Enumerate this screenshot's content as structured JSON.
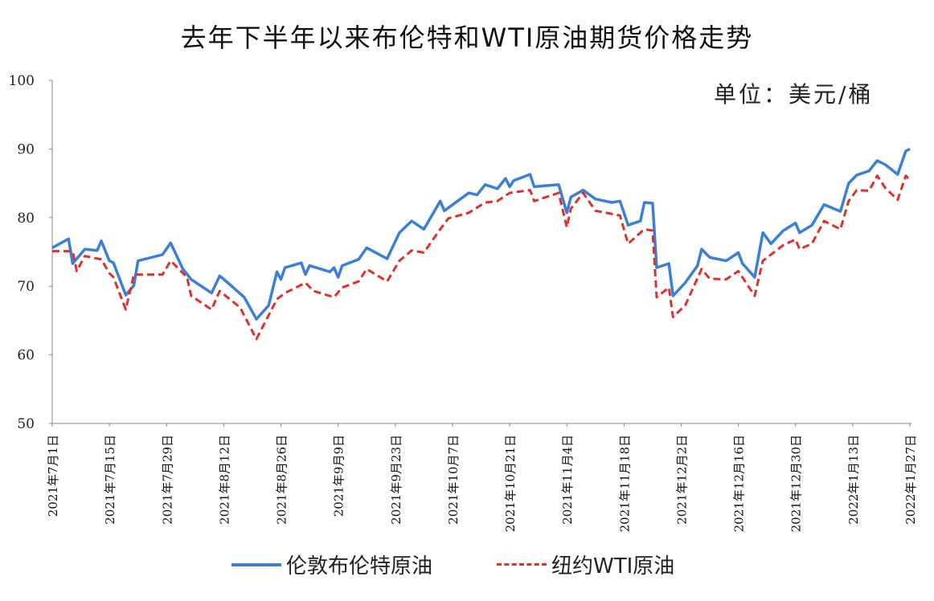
{
  "chart_data": {
    "type": "line",
    "title": "去年下半年以来布伦特和WTI原油期货价格走势",
    "unit_label": "单位：美元/桶",
    "xlabel": "",
    "ylabel": "",
    "ylim": [
      50,
      100
    ],
    "yticks": [
      50,
      60,
      70,
      80,
      90,
      100
    ],
    "xlim": [
      "2021-07-01",
      "2022-01-27"
    ],
    "xtick_dates": [
      "2021-07-01",
      "2021-07-15",
      "2021-07-29",
      "2021-08-12",
      "2021-08-26",
      "2021-09-09",
      "2021-09-23",
      "2021-10-07",
      "2021-10-21",
      "2021-11-04",
      "2021-11-18",
      "2021-12-02",
      "2021-12-16",
      "2021-12-30",
      "2022-01-13",
      "2022-01-27"
    ],
    "xtick_labels": [
      "2021年7月1日",
      "2021年7月15日",
      "2021年7月29日",
      "2021年8月12日",
      "2021年8月26日",
      "2021年9月9日",
      "2021年9月23日",
      "2021年10月7日",
      "2021年10月21日",
      "2021年11月4日",
      "2021年11月18日",
      "2021年12月2日",
      "2021年12月16日",
      "2021年12月30日",
      "2022年1月13日",
      "2022年1月27日"
    ],
    "grid": false,
    "legend_position": "bottom",
    "series": [
      {
        "name": "伦敦布伦特原油",
        "color": "#3b7fd9",
        "style": "solid",
        "x": [
          "2021-07-01",
          "2021-07-05",
          "2021-07-06",
          "2021-07-09",
          "2021-07-12",
          "2021-07-13",
          "2021-07-15",
          "2021-07-16",
          "2021-07-19",
          "2021-07-21",
          "2021-07-22",
          "2021-07-28",
          "2021-07-30",
          "2021-08-02",
          "2021-08-04",
          "2021-08-09",
          "2021-08-11",
          "2021-08-13",
          "2021-08-17",
          "2021-08-20",
          "2021-08-23",
          "2021-08-25",
          "2021-08-26",
          "2021-08-27",
          "2021-08-31",
          "2021-09-01",
          "2021-09-02",
          "2021-09-07",
          "2021-09-08",
          "2021-09-09",
          "2021-09-10",
          "2021-09-14",
          "2021-09-16",
          "2021-09-21",
          "2021-09-24",
          "2021-09-27",
          "2021-09-30",
          "2021-10-04",
          "2021-10-05",
          "2021-10-11",
          "2021-10-13",
          "2021-10-15",
          "2021-10-18",
          "2021-10-20",
          "2021-10-21",
          "2021-10-22",
          "2021-10-26",
          "2021-10-27",
          "2021-11-02",
          "2021-11-04",
          "2021-11-05",
          "2021-11-08",
          "2021-11-11",
          "2021-11-15",
          "2021-11-17",
          "2021-11-18",
          "2021-11-19",
          "2021-11-22",
          "2021-11-23",
          "2021-11-25",
          "2021-11-26",
          "2021-11-29",
          "2021-11-30",
          "2021-12-03",
          "2021-12-06",
          "2021-12-07",
          "2021-12-09",
          "2021-12-13",
          "2021-12-16",
          "2021-12-17",
          "2021-12-20",
          "2021-12-22",
          "2021-12-24",
          "2021-12-27",
          "2021-12-30",
          "2021-12-31",
          "2022-01-03",
          "2022-01-06",
          "2022-01-10",
          "2022-01-12",
          "2022-01-14",
          "2022-01-17",
          "2022-01-19",
          "2022-01-21",
          "2022-01-24",
          "2022-01-26",
          "2022-01-27"
        ],
        "values": [
          75.6,
          76.9,
          73.3,
          75.4,
          75.2,
          76.6,
          73.7,
          73.4,
          68.7,
          70.1,
          73.7,
          74.6,
          76.3,
          72.5,
          71.0,
          69.0,
          71.5,
          70.5,
          68.4,
          65.2,
          67.2,
          72.1,
          71.0,
          72.7,
          73.4,
          71.7,
          73.0,
          72.1,
          72.7,
          71.3,
          73.0,
          73.9,
          75.6,
          74.0,
          77.8,
          79.5,
          78.3,
          82.4,
          81.0,
          83.6,
          83.3,
          84.8,
          84.2,
          85.7,
          84.5,
          85.4,
          86.3,
          84.5,
          84.8,
          80.7,
          83.0,
          84.0,
          82.7,
          82.2,
          82.4,
          80.7,
          78.9,
          79.5,
          82.2,
          82.1,
          72.7,
          73.3,
          68.6,
          70.5,
          73.0,
          75.4,
          74.2,
          73.7,
          74.9,
          73.3,
          71.3,
          77.8,
          76.2,
          78.1,
          79.2,
          77.8,
          78.9,
          81.9,
          80.9,
          85.0,
          86.2,
          86.8,
          88.3,
          87.7,
          86.3,
          89.7,
          90.0
        ]
      },
      {
        "name": "纽约WTI原油",
        "color": "#e0302c",
        "style": "dashed",
        "x": [
          "2021-07-01",
          "2021-07-06",
          "2021-07-07",
          "2021-07-09",
          "2021-07-13",
          "2021-07-15",
          "2021-07-16",
          "2021-07-19",
          "2021-07-21",
          "2021-07-28",
          "2021-07-30",
          "2021-08-03",
          "2021-08-04",
          "2021-08-09",
          "2021-08-11",
          "2021-08-16",
          "2021-08-20",
          "2021-08-25",
          "2021-08-27",
          "2021-09-01",
          "2021-09-03",
          "2021-09-08",
          "2021-09-10",
          "2021-09-14",
          "2021-09-16",
          "2021-09-21",
          "2021-09-24",
          "2021-09-27",
          "2021-09-30",
          "2021-10-04",
          "2021-10-06",
          "2021-10-11",
          "2021-10-15",
          "2021-10-18",
          "2021-10-21",
          "2021-10-26",
          "2021-10-27",
          "2021-11-02",
          "2021-11-04",
          "2021-11-05",
          "2021-11-08",
          "2021-11-11",
          "2021-11-17",
          "2021-11-19",
          "2021-11-23",
          "2021-11-25",
          "2021-11-26",
          "2021-11-29",
          "2021-11-30",
          "2021-12-03",
          "2021-12-07",
          "2021-12-09",
          "2021-12-13",
          "2021-12-16",
          "2021-12-20",
          "2021-12-22",
          "2021-12-27",
          "2021-12-30",
          "2021-12-31",
          "2022-01-03",
          "2022-01-06",
          "2022-01-10",
          "2022-01-12",
          "2022-01-14",
          "2022-01-17",
          "2022-01-19",
          "2022-01-21",
          "2022-01-24",
          "2022-01-26",
          "2022-01-27"
        ],
        "values": [
          75.1,
          75.1,
          72.2,
          74.4,
          73.9,
          71.9,
          71.3,
          66.6,
          71.7,
          71.7,
          73.7,
          71.3,
          68.6,
          66.6,
          69.3,
          66.9,
          62.3,
          68.1,
          69.0,
          70.5,
          69.3,
          68.4,
          69.8,
          70.7,
          72.5,
          70.7,
          73.7,
          75.2,
          74.9,
          78.3,
          79.9,
          80.7,
          82.2,
          82.4,
          83.6,
          84.0,
          82.4,
          83.6,
          78.6,
          81.3,
          83.6,
          81.0,
          80.3,
          76.2,
          78.3,
          78.1,
          68.4,
          69.8,
          65.5,
          67.2,
          72.5,
          71.1,
          71.0,
          72.2,
          68.6,
          73.7,
          76.0,
          76.8,
          75.4,
          76.2,
          79.5,
          78.3,
          82.4,
          84.0,
          83.9,
          86.1,
          84.3,
          82.6,
          86.1,
          85.5
        ]
      }
    ]
  }
}
